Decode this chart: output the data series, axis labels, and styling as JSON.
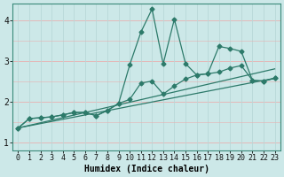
{
  "xlabel": "Humidex (Indice chaleur)",
  "bg_color": "#cce8e8",
  "grid_color_h": "#e8b0b0",
  "grid_color_v": "#b8d8d8",
  "line_color": "#2d7a6a",
  "xlim": [
    -0.5,
    23.5
  ],
  "ylim": [
    0.8,
    4.4
  ],
  "xticks": [
    0,
    1,
    2,
    3,
    4,
    5,
    6,
    7,
    8,
    9,
    10,
    11,
    12,
    13,
    14,
    15,
    16,
    17,
    18,
    19,
    20,
    21,
    22,
    23
  ],
  "yticks": [
    1,
    2,
    3,
    4
  ],
  "line1_x": [
    0,
    1,
    2,
    3,
    4,
    5,
    6,
    7,
    8,
    9,
    10,
    11,
    12,
    13,
    14,
    15,
    16,
    17,
    18,
    19,
    20,
    21,
    22,
    23
  ],
  "line1_y": [
    1.35,
    1.58,
    1.6,
    1.62,
    1.67,
    1.73,
    1.73,
    1.65,
    1.78,
    1.95,
    2.9,
    3.7,
    4.27,
    2.92,
    4.02,
    2.93,
    2.65,
    2.68,
    3.35,
    3.3,
    3.23,
    2.52,
    2.5,
    2.57
  ],
  "line2_x": [
    0,
    1,
    2,
    3,
    4,
    5,
    6,
    7,
    8,
    9,
    10,
    11,
    12,
    13,
    14,
    15,
    16,
    17,
    18,
    19,
    20,
    21,
    22,
    23
  ],
  "line2_y": [
    1.35,
    1.58,
    1.6,
    1.62,
    1.67,
    1.73,
    1.73,
    1.65,
    1.78,
    1.95,
    2.05,
    2.45,
    2.5,
    2.18,
    2.38,
    2.55,
    2.65,
    2.68,
    2.72,
    2.82,
    2.88,
    2.52,
    2.5,
    2.57
  ],
  "line3_x": [
    0,
    23
  ],
  "line3_y": [
    1.35,
    2.57
  ],
  "line4_x": [
    0,
    23
  ],
  "line4_y": [
    1.35,
    2.8
  ],
  "marker_size": 2.5,
  "linewidth": 0.9,
  "xlabel_fontsize": 7,
  "tick_fontsize": 6
}
